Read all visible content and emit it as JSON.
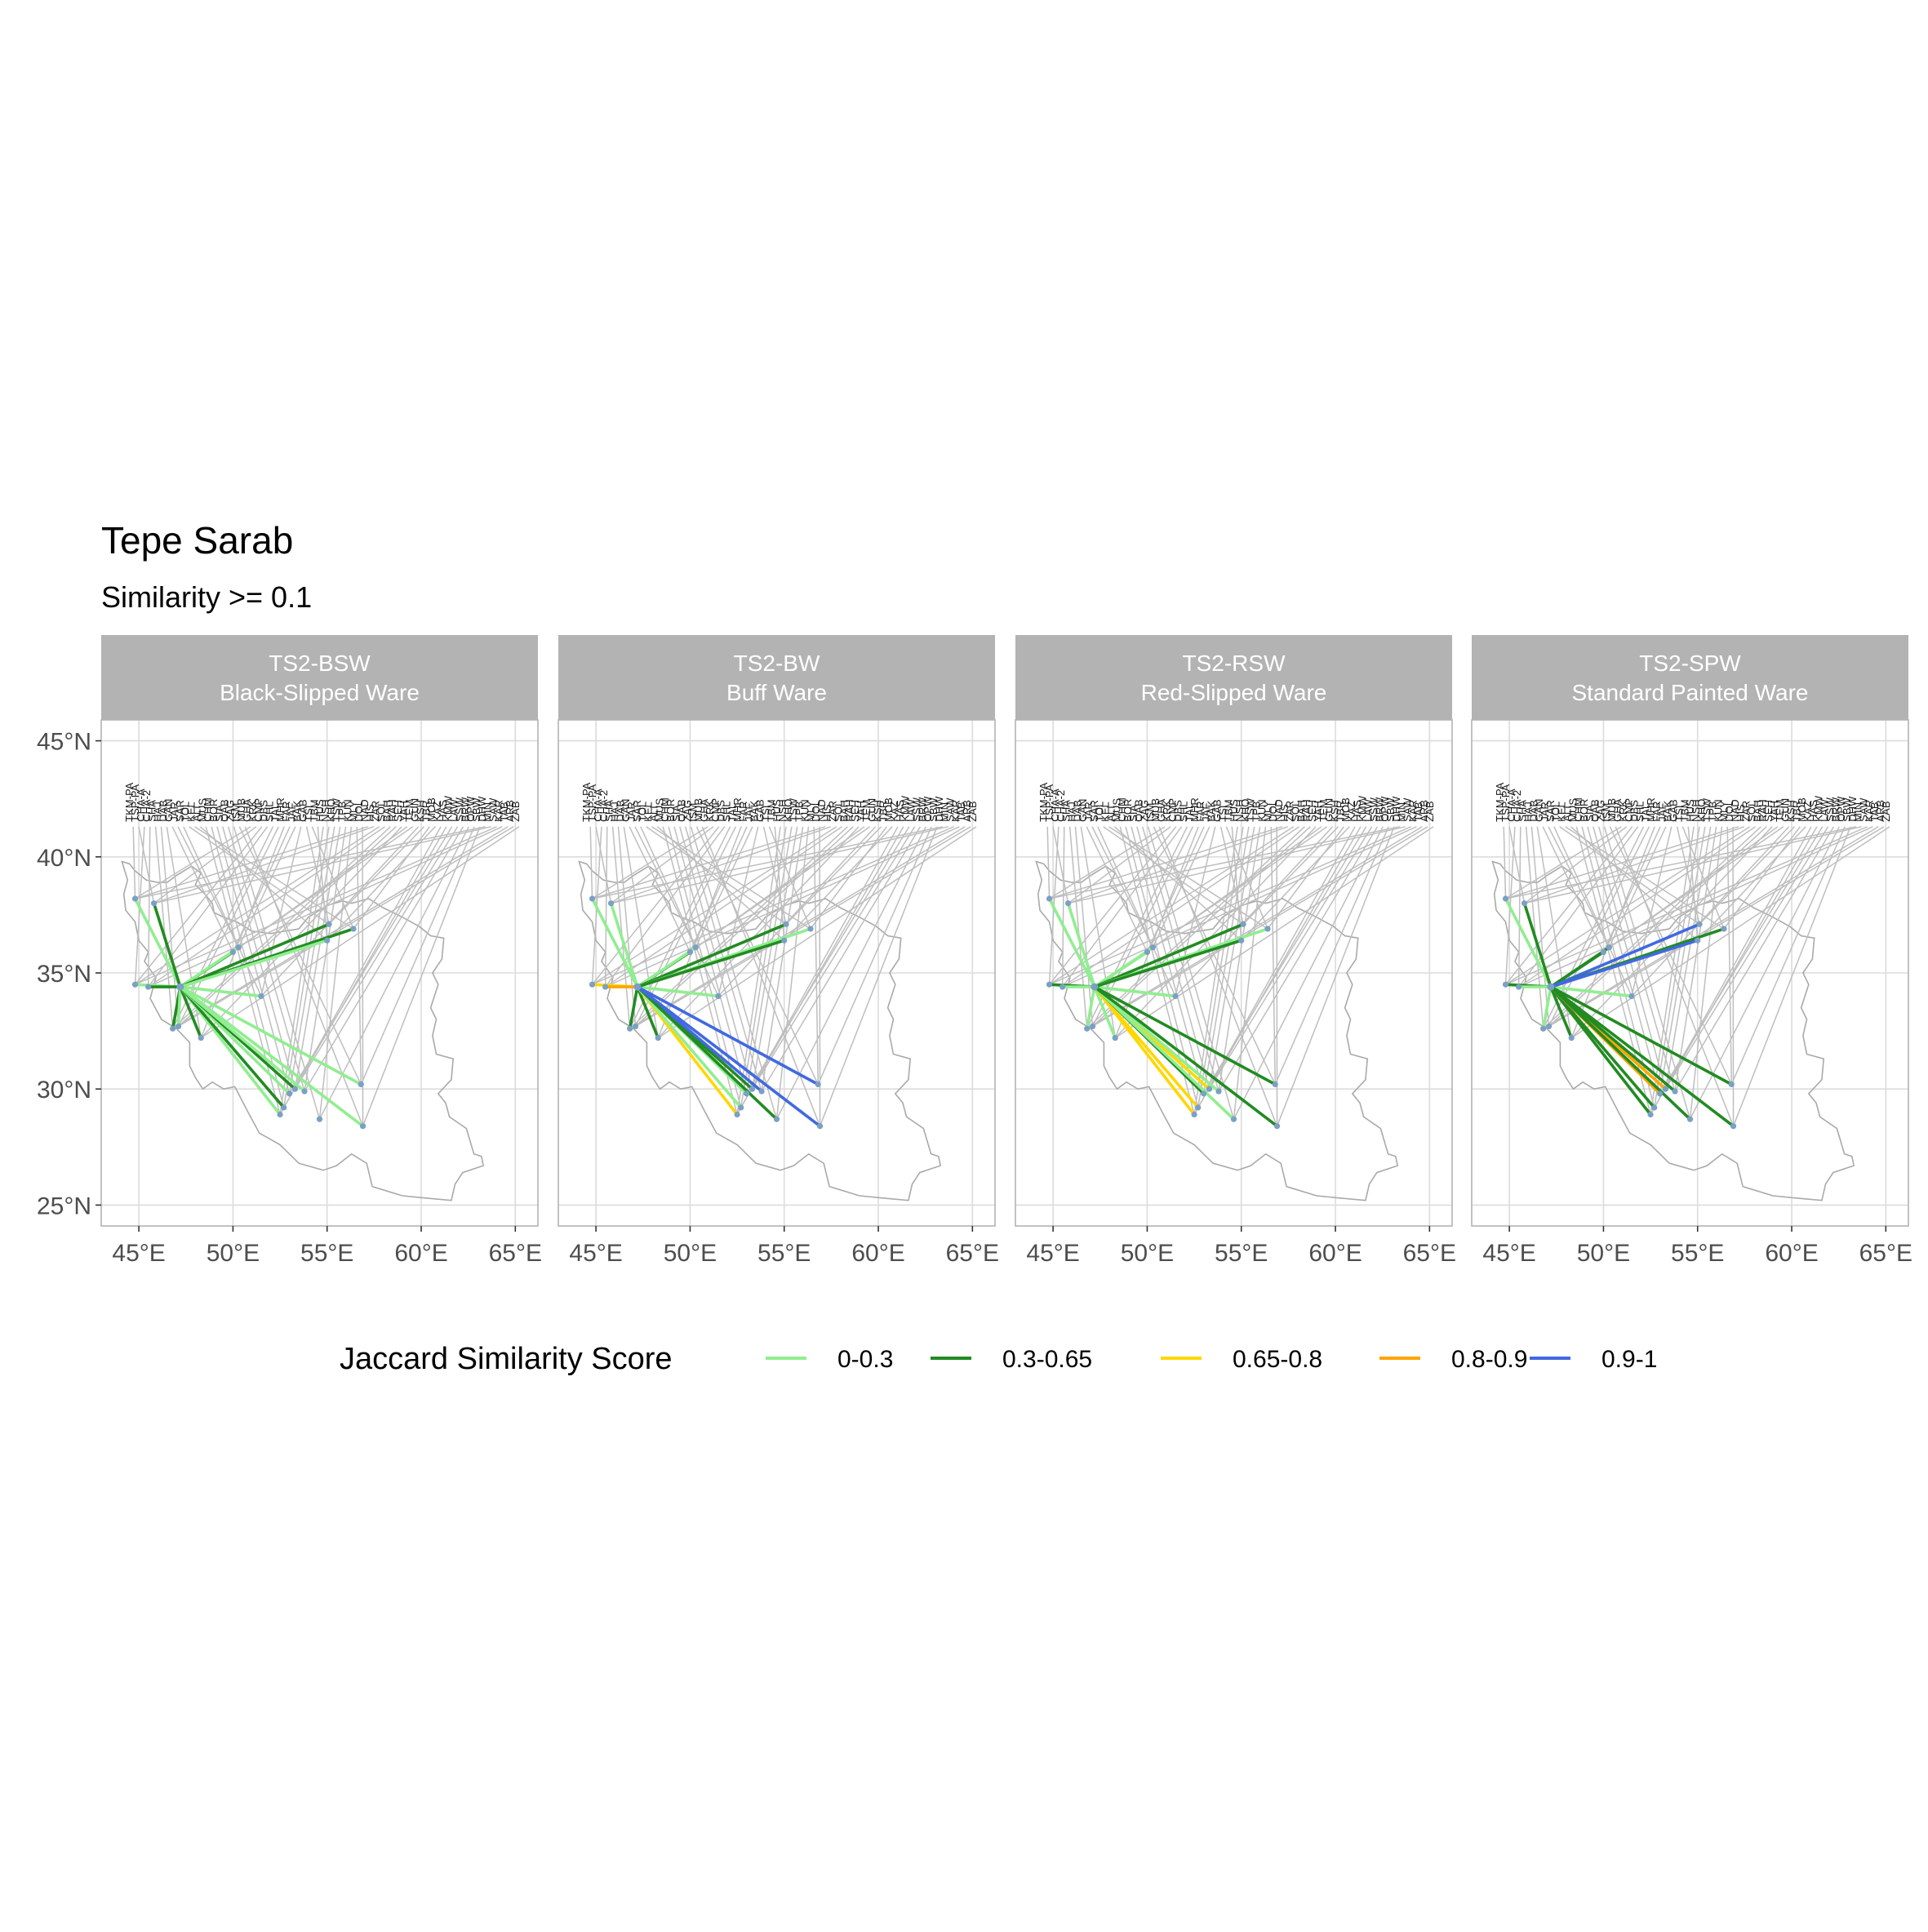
{
  "title": "Tepe Sarab",
  "subtitle": "Similarity >= 0.1",
  "panels": [
    {
      "code": "TS2-BSW",
      "name": "Black-Slipped Ware"
    },
    {
      "code": "TS2-BW",
      "name": "Buff Ware"
    },
    {
      "code": "TS2-RSW",
      "name": "Red-Slipped Ware"
    },
    {
      "code": "TS2-SPW",
      "name": "Standard Painted Ware"
    }
  ],
  "axes": {
    "x_ticks": [
      "45°E",
      "50°E",
      "55°E",
      "60°E",
      "65°E"
    ],
    "y_ticks": [
      "45°N",
      "40°N",
      "35°N",
      "30°N",
      "25°N"
    ],
    "x_values": [
      45,
      50,
      55,
      60,
      65
    ],
    "y_values": [
      45,
      40,
      35,
      30,
      25
    ],
    "xlim": [
      43,
      66.2
    ],
    "ylim": [
      24.1,
      45.9
    ],
    "grid": true
  },
  "legend": {
    "title": "Jaccard Similarity Score",
    "position": "bottom",
    "items": [
      {
        "label": "0-0.3",
        "color": "#90ee90"
      },
      {
        "label": "0.3-0.65",
        "color": "#228b22"
      },
      {
        "label": "0.65-0.8",
        "color": "#ffd700"
      },
      {
        "label": "0.8-0.9",
        "color": "#ffa500"
      },
      {
        "label": "0.9-1",
        "color": "#4169e1"
      }
    ]
  },
  "colors": {
    "strip": "#b3b3b3",
    "panel_border": "#b3b3b3",
    "grid": "#dcdcdc",
    "leader": "#bebebe",
    "outline": "#a9a9a9",
    "point": "#7aa0c4"
  },
  "chart_data": {
    "type": "map-network",
    "origin_site": {
      "name": "Tepe Sarab",
      "lon": 47.2,
      "lat": 34.4
    },
    "leader_anchor_lat": 41.3,
    "label_row_lon": [
      44.7,
      65.2
    ],
    "label_count": 70,
    "site_labels": [
      "TKM-PA",
      "TSP-PA",
      "CHA-A",
      "CHA-2",
      "SHA",
      "HAJ",
      "DAB",
      "GAN",
      "JAR",
      "SAR",
      "TOL",
      "KEL",
      "ALI",
      "MUS",
      "CHM",
      "BOR",
      "SIA",
      "QAB",
      "ZAG",
      "ISM",
      "MUB",
      "GHA",
      "KRK",
      "CMP",
      "DBS",
      "SHL",
      "TAL",
      "MHR",
      "FAR",
      "JAF",
      "BAK",
      "GAB",
      "TSI",
      "TBM",
      "HUS",
      "NSH",
      "KHO",
      "TSW",
      "TPB",
      "KUN",
      "MLY",
      "DOL",
      "NAD",
      "HIS",
      "ZAR",
      "SOL",
      "BAH",
      "RAH",
      "SEH",
      "YAH",
      "TEM",
      "GUN",
      "KSH",
      "TBR",
      "MOB",
      "KAZ",
      "HAS",
      "KMW",
      "LAW",
      "SSW",
      "BRW",
      "OPW",
      "SBW",
      "DHW",
      "MIN",
      "SAW",
      "KAR",
      "TAB",
      "ARB",
      "ZAB"
    ],
    "sites": [
      {
        "lon": 44.8,
        "lat": 38.2
      },
      {
        "lon": 45.8,
        "lat": 38.0
      },
      {
        "lon": 44.8,
        "lat": 34.5
      },
      {
        "lon": 45.5,
        "lat": 34.4
      },
      {
        "lon": 46.8,
        "lat": 32.6
      },
      {
        "lon": 47.1,
        "lat": 32.7
      },
      {
        "lon": 48.3,
        "lat": 32.2
      },
      {
        "lon": 50.0,
        "lat": 35.9
      },
      {
        "lon": 50.3,
        "lat": 36.1
      },
      {
        "lon": 51.5,
        "lat": 34.0
      },
      {
        "lon": 55.1,
        "lat": 37.1
      },
      {
        "lon": 56.4,
        "lat": 36.9
      },
      {
        "lon": 55.0,
        "lat": 36.4
      },
      {
        "lon": 52.5,
        "lat": 28.9
      },
      {
        "lon": 52.7,
        "lat": 29.2
      },
      {
        "lon": 53.0,
        "lat": 29.8
      },
      {
        "lon": 53.3,
        "lat": 30.0
      },
      {
        "lon": 53.8,
        "lat": 29.9
      },
      {
        "lon": 54.6,
        "lat": 28.7
      },
      {
        "lon": 56.8,
        "lat": 30.2
      },
      {
        "lon": 56.9,
        "lat": 28.4
      }
    ],
    "connections": [
      [
        {
          "site": 0,
          "band": 0
        },
        {
          "site": 1,
          "band": 1
        },
        {
          "site": 2,
          "band": 0
        },
        {
          "site": 3,
          "band": 1
        },
        {
          "site": 4,
          "band": 1
        },
        {
          "site": 5,
          "band": 0
        },
        {
          "site": 6,
          "band": 1
        },
        {
          "site": 7,
          "band": 1
        },
        {
          "site": 8,
          "band": 0
        },
        {
          "site": 9,
          "band": 0
        },
        {
          "site": 10,
          "band": 1
        },
        {
          "site": 11,
          "band": 1
        },
        {
          "site": 12,
          "band": 0
        },
        {
          "site": 13,
          "band": 0
        },
        {
          "site": 14,
          "band": 1
        },
        {
          "site": 15,
          "band": 0
        },
        {
          "site": 16,
          "band": 1
        },
        {
          "site": 17,
          "band": 0
        },
        {
          "site": 19,
          "band": 0
        },
        {
          "site": 20,
          "band": 0
        }
      ],
      [
        {
          "site": 0,
          "band": 0
        },
        {
          "site": 1,
          "band": 0
        },
        {
          "site": 2,
          "band": 2
        },
        {
          "site": 3,
          "band": 3
        },
        {
          "site": 4,
          "band": 1
        },
        {
          "site": 6,
          "band": 1
        },
        {
          "site": 7,
          "band": 1
        },
        {
          "site": 8,
          "band": 0
        },
        {
          "site": 9,
          "band": 0
        },
        {
          "site": 10,
          "band": 1
        },
        {
          "site": 11,
          "band": 0
        },
        {
          "site": 12,
          "band": 1
        },
        {
          "site": 13,
          "band": 2
        },
        {
          "site": 14,
          "band": 0
        },
        {
          "site": 15,
          "band": 0
        },
        {
          "site": 16,
          "band": 1
        },
        {
          "site": 17,
          "band": 4
        },
        {
          "site": 18,
          "band": 1
        },
        {
          "site": 19,
          "band": 4
        },
        {
          "site": 20,
          "band": 4
        }
      ],
      [
        {
          "site": 0,
          "band": 0
        },
        {
          "site": 1,
          "band": 0
        },
        {
          "site": 2,
          "band": 1
        },
        {
          "site": 3,
          "band": 0
        },
        {
          "site": 4,
          "band": 0
        },
        {
          "site": 6,
          "band": 0
        },
        {
          "site": 7,
          "band": 0
        },
        {
          "site": 8,
          "band": 0
        },
        {
          "site": 9,
          "band": 0
        },
        {
          "site": 10,
          "band": 1
        },
        {
          "site": 11,
          "band": 0
        },
        {
          "site": 12,
          "band": 1
        },
        {
          "site": 13,
          "band": 2
        },
        {
          "site": 14,
          "band": 2
        },
        {
          "site": 15,
          "band": 1
        },
        {
          "site": 16,
          "band": 2
        },
        {
          "site": 17,
          "band": 0
        },
        {
          "site": 18,
          "band": 0
        },
        {
          "site": 19,
          "band": 1
        },
        {
          "site": 20,
          "band": 1
        }
      ],
      [
        {
          "site": 0,
          "band": 0
        },
        {
          "site": 1,
          "band": 1
        },
        {
          "site": 2,
          "band": 1
        },
        {
          "site": 3,
          "band": 0
        },
        {
          "site": 4,
          "band": 0
        },
        {
          "site": 6,
          "band": 1
        },
        {
          "site": 7,
          "band": 1
        },
        {
          "site": 8,
          "band": 1
        },
        {
          "site": 9,
          "band": 0
        },
        {
          "site": 10,
          "band": 4
        },
        {
          "site": 11,
          "band": 1
        },
        {
          "site": 12,
          "band": 4
        },
        {
          "site": 13,
          "band": 1
        },
        {
          "site": 14,
          "band": 1
        },
        {
          "site": 15,
          "band": 3
        },
        {
          "site": 16,
          "band": 3
        },
        {
          "site": 17,
          "band": 1
        },
        {
          "site": 18,
          "band": 1
        },
        {
          "site": 19,
          "band": 1
        },
        {
          "site": 20,
          "band": 1
        }
      ]
    ],
    "outline": [
      [
        44.1,
        39.8
      ],
      [
        44.5,
        39.7
      ],
      [
        44.8,
        39.4
      ],
      [
        45.4,
        39.0
      ],
      [
        46.0,
        38.9
      ],
      [
        46.5,
        38.9
      ],
      [
        47.0,
        39.2
      ],
      [
        47.8,
        39.6
      ],
      [
        48.3,
        39.3
      ],
      [
        48.0,
        38.8
      ],
      [
        48.5,
        38.4
      ],
      [
        48.9,
        38.0
      ],
      [
        49.0,
        37.6
      ],
      [
        49.5,
        37.4
      ],
      [
        50.2,
        37.2
      ],
      [
        51.0,
        36.8
      ],
      [
        52.0,
        36.7
      ],
      [
        53.5,
        36.9
      ],
      [
        54.0,
        37.4
      ],
      [
        55.0,
        37.9
      ],
      [
        55.8,
        38.1
      ],
      [
        56.3,
        38.0
      ],
      [
        57.2,
        38.2
      ],
      [
        58.0,
        37.8
      ],
      [
        59.0,
        37.4
      ],
      [
        59.9,
        37.0
      ],
      [
        60.5,
        36.6
      ],
      [
        61.2,
        36.5
      ],
      [
        61.1,
        35.6
      ],
      [
        60.6,
        35.0
      ],
      [
        60.9,
        34.5
      ],
      [
        60.5,
        33.5
      ],
      [
        60.8,
        33.0
      ],
      [
        60.6,
        32.3
      ],
      [
        60.8,
        31.5
      ],
      [
        61.7,
        31.3
      ],
      [
        61.6,
        30.4
      ],
      [
        60.9,
        29.8
      ],
      [
        61.3,
        29.4
      ],
      [
        61.5,
        28.8
      ],
      [
        62.4,
        28.3
      ],
      [
        62.8,
        27.2
      ],
      [
        63.2,
        27.1
      ],
      [
        63.3,
        26.7
      ],
      [
        62.2,
        26.4
      ],
      [
        61.8,
        25.9
      ],
      [
        61.6,
        25.2
      ],
      [
        60.3,
        25.3
      ],
      [
        59.0,
        25.4
      ],
      [
        57.4,
        25.8
      ],
      [
        57.1,
        26.8
      ],
      [
        56.3,
        27.2
      ],
      [
        55.5,
        26.7
      ],
      [
        54.8,
        26.5
      ],
      [
        53.5,
        26.8
      ],
      [
        52.5,
        27.6
      ],
      [
        51.4,
        28.1
      ],
      [
        50.8,
        29.0
      ],
      [
        50.1,
        30.1
      ],
      [
        49.5,
        30.0
      ],
      [
        48.9,
        30.3
      ],
      [
        48.4,
        30.0
      ],
      [
        48.0,
        30.5
      ],
      [
        47.7,
        31.0
      ],
      [
        47.7,
        32.0
      ],
      [
        47.0,
        32.6
      ],
      [
        46.2,
        33.0
      ],
      [
        45.6,
        33.9
      ],
      [
        45.9,
        34.8
      ],
      [
        45.3,
        35.5
      ],
      [
        45.5,
        35.9
      ],
      [
        45.0,
        36.4
      ],
      [
        44.8,
        37.2
      ],
      [
        44.3,
        37.7
      ],
      [
        44.2,
        38.4
      ],
      [
        44.4,
        39.0
      ],
      [
        44.1,
        39.8
      ]
    ]
  }
}
